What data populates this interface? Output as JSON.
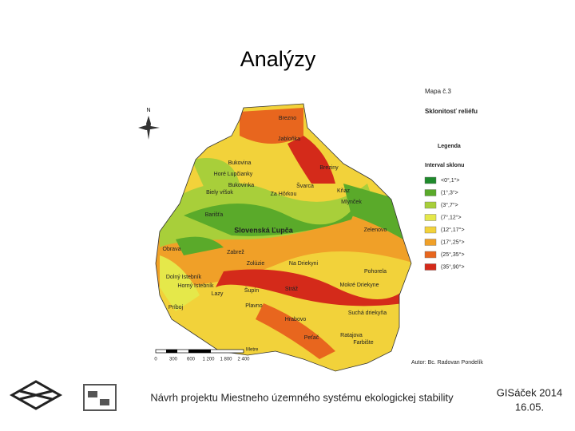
{
  "slide": {
    "title": "Analýzy",
    "map": {
      "north": "N",
      "map_number": "Mapa č.3",
      "map_title": "Sklonitosť reliéfu",
      "legend_heading": "Legenda",
      "legend_subheading": "Interval sklonu",
      "legend": [
        {
          "label": "<0°,1°>",
          "color": "#1f8a2c"
        },
        {
          "label": "(1°,3°>",
          "color": "#5aaa2a"
        },
        {
          "label": "(3°,7°>",
          "color": "#a8cf3a"
        },
        {
          "label": "(7°,12°>",
          "color": "#e5e84a"
        },
        {
          "label": "(12°,17°>",
          "color": "#f2d23a"
        },
        {
          "label": "(17°,25°>",
          "color": "#f0a028"
        },
        {
          "label": "(25°,35°>",
          "color": "#e8661e"
        },
        {
          "label": "(35°,90°>",
          "color": "#d42a1a"
        }
      ],
      "places": [
        "Brezno",
        "Jabloňka",
        "Bukovina",
        "Horé Lupčianky",
        "Bukovinka",
        "Biely vŕšok",
        "Za Hôrkou",
        "Švarca",
        "Breziny",
        "Kňaz",
        "Mlynček",
        "Barišťa",
        "Slovenská Ľupča",
        "Zelenovo",
        "Obrava",
        "Zabrež",
        "Zolúzie",
        "Na Driekyni",
        "Pohorela",
        "Dolný Istebník",
        "Horný Istebník",
        "Lazy",
        "Šupín",
        "Stráž",
        "Mokré Driekyne",
        "Príboj",
        "Plavno",
        "Suchá driekyňa",
        "Hrabovo",
        "Peťač",
        "Ratajova",
        "Farbište"
      ],
      "scale_labels": [
        "0",
        "300",
        "600",
        "1 200",
        "1 800",
        "2 400"
      ],
      "scale_unit": "Metre",
      "author": "Autor: Bc. Radovan Pondelík"
    },
    "footer": {
      "caption": "Návrh projektu Miestneho územného systému ekologickej stability",
      "event": "GISáček 2014",
      "date": "16.05."
    }
  }
}
